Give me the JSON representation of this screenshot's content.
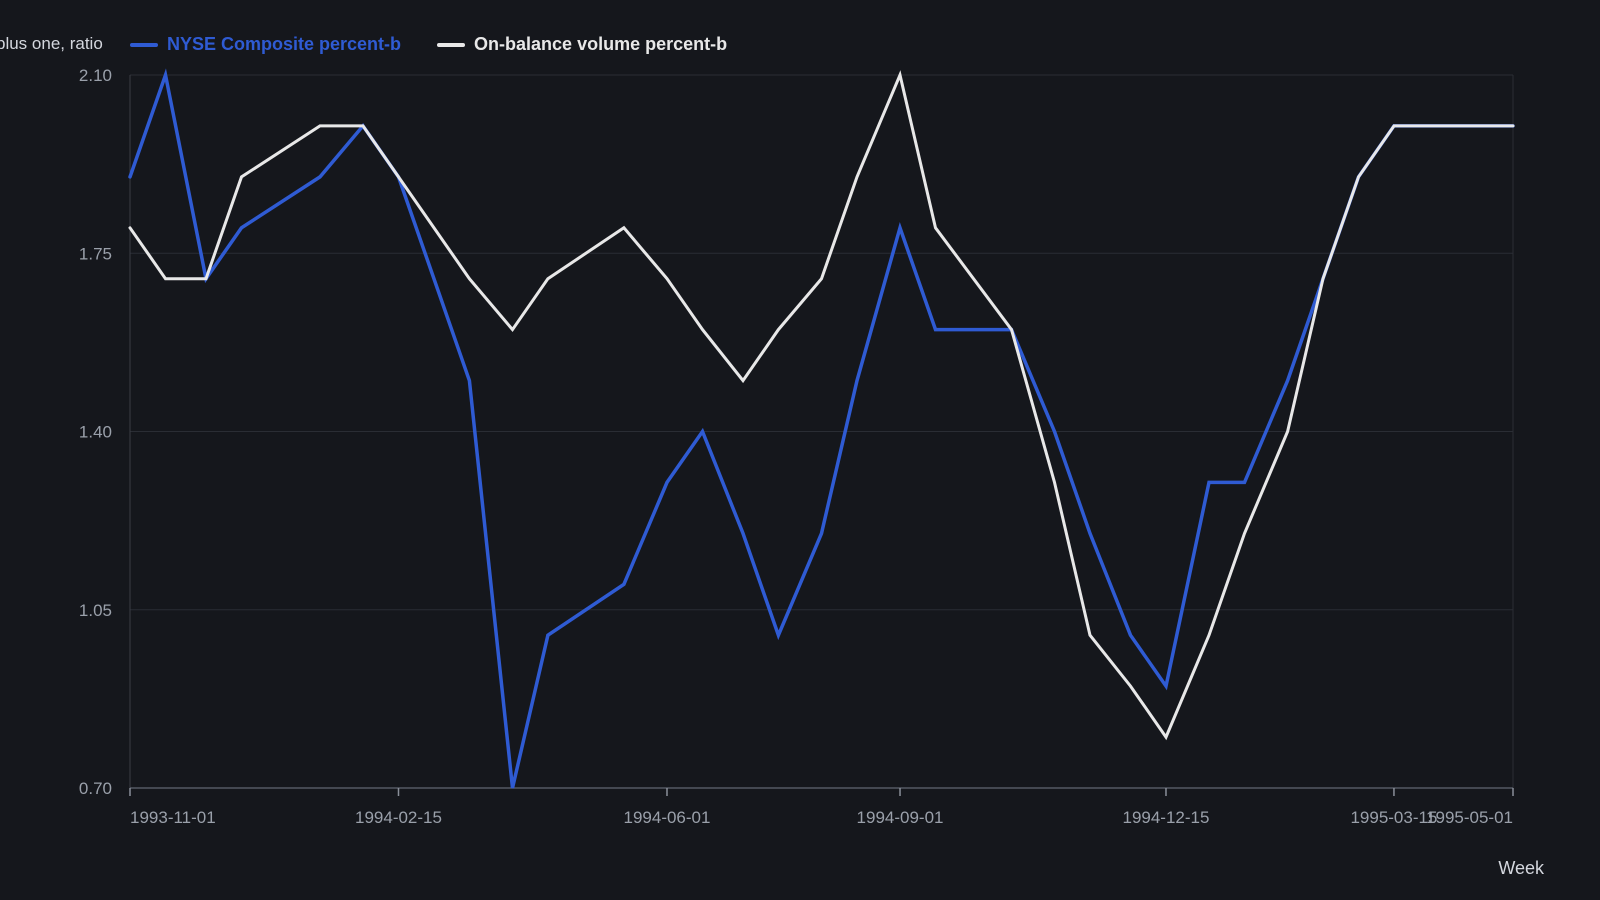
{
  "chart_data": {
    "type": "line",
    "ylabel": "plus one, ratio",
    "xlabel": "Week",
    "ylim": [
      0.7,
      2.1
    ],
    "yticks": [
      0.7,
      1.05,
      1.4,
      1.75,
      2.1
    ],
    "ytick_labels": [
      "0.70",
      "1.05",
      "1.40",
      "1.75",
      "2.10"
    ],
    "xlim": [
      "1993-11-01",
      "1995-05-01"
    ],
    "xticks": [
      "1993-11-01",
      "1994-02-15",
      "1994-06-01",
      "1994-09-01",
      "1994-12-15",
      "1995-03-15",
      "1995-05-01"
    ],
    "grid": "horizontal",
    "legend_position": "top-left",
    "background": "#15171c",
    "x": [
      "1993-11-01",
      "1993-11-15",
      "1993-12-01",
      "1993-12-15",
      "1994-01-15",
      "1994-02-01",
      "1994-02-15",
      "1994-03-15",
      "1994-04-01",
      "1994-04-15",
      "1994-05-15",
      "1994-06-01",
      "1994-06-15",
      "1994-07-01",
      "1994-07-15",
      "1994-08-01",
      "1994-08-15",
      "1994-09-01",
      "1994-09-15",
      "1994-10-15",
      "1994-11-01",
      "1994-11-15",
      "1994-12-01",
      "1994-12-15",
      "1995-01-01",
      "1995-01-15",
      "1995-02-01",
      "1995-02-15",
      "1995-03-01",
      "1995-03-15",
      "1995-05-01"
    ],
    "series": [
      {
        "name": "NYSE Composite percent-b",
        "color": "#2f5bd3",
        "values": [
          1.9,
          2.1,
          1.7,
          1.8,
          1.9,
          2.0,
          1.9,
          1.5,
          0.7,
          1.0,
          1.1,
          1.3,
          1.4,
          1.2,
          1.0,
          1.2,
          1.5,
          1.8,
          1.6,
          1.6,
          1.4,
          1.2,
          1.0,
          0.9,
          1.3,
          1.3,
          1.5,
          1.7,
          1.9,
          2.0,
          2.0
        ]
      },
      {
        "name": "On-balance volume percent-b",
        "color": "#e8e8e8",
        "values": [
          1.8,
          1.7,
          1.7,
          1.9,
          2.0,
          2.0,
          1.9,
          1.7,
          1.6,
          1.7,
          1.8,
          1.7,
          1.6,
          1.5,
          1.6,
          1.7,
          1.9,
          2.1,
          1.8,
          1.6,
          1.3,
          1.0,
          0.9,
          0.8,
          1.0,
          1.2,
          1.4,
          1.7,
          1.9,
          2.0,
          2.0
        ]
      }
    ]
  }
}
